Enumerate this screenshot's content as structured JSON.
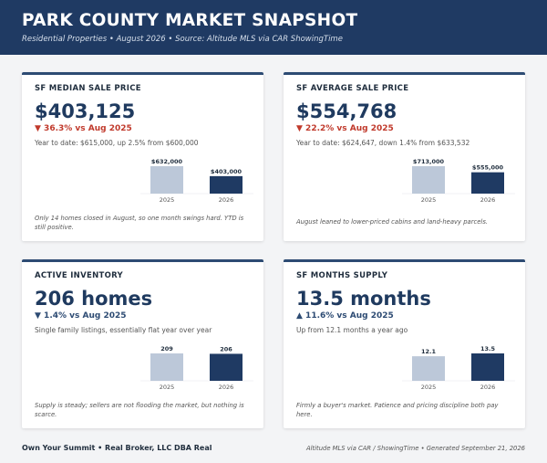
{
  "header": {
    "title": "PARK COUNTY MARKET SNAPSHOT",
    "subtitle": "Residential Properties  •  August 2026  •  Source: Altitude MLS via CAR ShowingTime"
  },
  "cards": [
    {
      "title": "SF MEDIAN SALE PRICE",
      "big_value": "$403,125",
      "change": "▼ 36.3% vs Aug 2025",
      "change_color": "#c0392b",
      "detail": "Year to date: $615,000, up 2.5% from $600,000",
      "note": "Only 14 homes closed in August, so one month swings hard. YTD is still positive."
    },
    {
      "title": "SF AVERAGE SALE PRICE",
      "big_value": "$554,768",
      "change": "▼ 22.2% vs Aug 2025",
      "change_color": "#c0392b",
      "detail": "Year to date: $624,647, down 1.4% from $633,532",
      "note": "August leaned to lower-priced cabins and land-heavy parcels."
    },
    {
      "title": "ACTIVE INVENTORY",
      "big_value": "206 homes",
      "change": "▼ 1.4% vs Aug 2025",
      "change_color": "#2d4b73",
      "detail": "Single family listings, essentially flat year over year",
      "note": "Supply is steady; sellers are not flooding the market, but nothing is scarce."
    },
    {
      "title": "SF MONTHS SUPPLY",
      "big_value": "13.5 months",
      "change": "▲ 11.6% vs Aug 2025",
      "change_color": "#2d4b73",
      "detail": "Up from 12.1 months a year ago",
      "note": "Firmly a buyer's market. Patience and pricing discipline both pay here."
    }
  ],
  "chart_data": [
    {
      "type": "bar",
      "categories": [
        "2025",
        "2026"
      ],
      "values": [
        632000,
        403000
      ],
      "value_labels": [
        "$632,000",
        "$403,000"
      ]
    },
    {
      "type": "bar",
      "categories": [
        "2025",
        "2026"
      ],
      "values": [
        713000,
        555000
      ],
      "value_labels": [
        "$713,000",
        "$555,000"
      ]
    },
    {
      "type": "bar",
      "categories": [
        "2025",
        "2026"
      ],
      "values": [
        209,
        206
      ],
      "value_labels": [
        "209",
        "206"
      ]
    },
    {
      "type": "bar",
      "categories": [
        "2025",
        "2026"
      ],
      "values": [
        12.1,
        13.5
      ],
      "value_labels": [
        "12.1",
        "13.5"
      ]
    }
  ],
  "footer": {
    "left": "Own Your Summit  •  Real Broker, LLC DBA Real",
    "right": "Altitude MLS via CAR / ShowingTime  •  Generated September 21, 2026"
  },
  "colors": {
    "header_bg": "#1f3a63",
    "bar_prior": "#bcc8d9",
    "bar_current": "#1f3a63",
    "negative": "#c0392b"
  }
}
